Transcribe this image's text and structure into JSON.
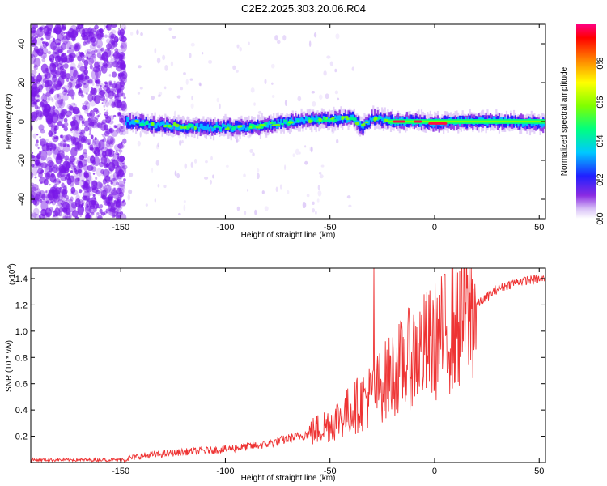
{
  "title": "C2E2.2025.303.20.06.R04",
  "colors": {
    "line": "#ee3333",
    "axis": "#000000",
    "noise": "#7a18e8"
  },
  "chart_data": [
    {
      "type": "heatmap",
      "xlabel": "Height of straight line (km)",
      "ylabel": "Frequency (Hz)",
      "xlim": [
        -193,
        53
      ],
      "ylim": [
        -50,
        50
      ],
      "x_ticks": [
        -150,
        -100,
        -50,
        0,
        50
      ],
      "y_ticks": [
        -40,
        -20,
        0,
        20,
        40
      ],
      "colorbar": {
        "label": "Normalized spectral amplitude",
        "range": [
          0,
          1
        ],
        "ticks": [
          0.0,
          0.2,
          0.4,
          0.6,
          0.8
        ],
        "tick_labels": [
          "0.0",
          "0.2",
          "0.4",
          "0.6",
          "0.8"
        ],
        "colormap": [
          "#ffffff",
          "#d9c2f7",
          "#8a2be2",
          "#2020ff",
          "#00c8ff",
          "#00ff80",
          "#80ff00",
          "#ffff00",
          "#ff8000",
          "#ff0000",
          "#ff0080"
        ]
      },
      "ridge": [
        [
          -148,
          0
        ],
        [
          -130,
          -2
        ],
        [
          -110,
          -3
        ],
        [
          -90,
          -3
        ],
        [
          -75,
          -1
        ],
        [
          -60,
          1
        ],
        [
          -50,
          1
        ],
        [
          -40,
          2
        ],
        [
          -35,
          -3
        ],
        [
          -30,
          2
        ],
        [
          -20,
          0
        ],
        [
          -10,
          0
        ],
        [
          0,
          -1
        ],
        [
          10,
          0
        ],
        [
          30,
          0
        ],
        [
          53,
          -1
        ]
      ],
      "noise_region": {
        "x_range": [
          -193,
          -148
        ],
        "y_range": [
          -50,
          50
        ]
      }
    },
    {
      "type": "line",
      "xlabel": "Height of straight line (km)",
      "ylabel": "SNR (10 * v/v)",
      "y_multiplier": "(x10",
      "y_multiplier_exp": "4",
      "y_multiplier_close": ")",
      "xlim": [
        -193,
        53
      ],
      "ylim": [
        0,
        1.48
      ],
      "x_ticks": [
        -150,
        -100,
        -50,
        0,
        50
      ],
      "y_ticks": [
        0.2,
        0.4,
        0.6,
        0.8,
        1.0,
        1.2,
        1.4
      ],
      "y_tick_labels": [
        "0.2",
        "0.4",
        "0.6",
        "0.8",
        "1.0",
        "1.2",
        "1.4"
      ],
      "trend": [
        [
          -193,
          0.02
        ],
        [
          -150,
          0.02
        ],
        [
          -140,
          0.05
        ],
        [
          -120,
          0.08
        ],
        [
          -100,
          0.1
        ],
        [
          -80,
          0.14
        ],
        [
          -60,
          0.22
        ],
        [
          -50,
          0.3
        ],
        [
          -40,
          0.4
        ],
        [
          -30,
          0.52
        ],
        [
          -25,
          0.6
        ],
        [
          -20,
          0.68
        ],
        [
          -10,
          0.82
        ],
        [
          0,
          0.92
        ],
        [
          10,
          1.05
        ],
        [
          20,
          1.2
        ],
        [
          30,
          1.32
        ],
        [
          40,
          1.38
        ],
        [
          53,
          1.4
        ]
      ],
      "peak": [
        -29,
        1.48
      ]
    }
  ]
}
